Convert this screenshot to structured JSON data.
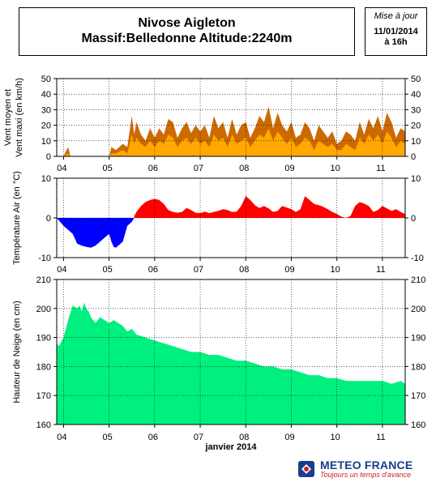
{
  "header": {
    "title_line1": "Nivose Aigleton",
    "title_line2": "Massif:Belledonne Altitude:2240m",
    "update_label": "Mise à jour",
    "update_date": "11/01/2014",
    "update_hour": "à 16h"
  },
  "logo": {
    "name": "METEO FRANCE",
    "tagline": "Toujours un temps d'avance",
    "color_blue": "#1c3c8c",
    "color_red": "#d0202a"
  },
  "chart_data": [
    {
      "type": "area",
      "ylabel": "Vent moyen et Vent maxi (en km/h)",
      "ylim": [
        0,
        50
      ],
      "yticks": [
        0,
        10,
        20,
        30,
        40,
        50
      ],
      "xlabel": "",
      "x_tick_labels": [
        "04",
        "05",
        "06",
        "07",
        "08",
        "09",
        "10",
        "11"
      ],
      "grid": true,
      "series": [
        {
          "color": "#cc6a00",
          "x": [
            3.85,
            4.0,
            4.1,
            4.15,
            4.2,
            4.3,
            4.6,
            5.0,
            5.05,
            5.15,
            5.3,
            5.4,
            5.5,
            5.55,
            5.6,
            5.7,
            5.8,
            5.9,
            6.0,
            6.1,
            6.2,
            6.3,
            6.4,
            6.5,
            6.6,
            6.7,
            6.8,
            6.9,
            7.0,
            7.1,
            7.2,
            7.3,
            7.4,
            7.5,
            7.6,
            7.7,
            7.8,
            7.9,
            8.0,
            8.1,
            8.2,
            8.3,
            8.4,
            8.5,
            8.6,
            8.7,
            8.8,
            8.9,
            9.0,
            9.1,
            9.2,
            9.3,
            9.4,
            9.5,
            9.6,
            9.7,
            9.8,
            9.9,
            10.0,
            10.1,
            10.2,
            10.3,
            10.4,
            10.5,
            10.6,
            10.7,
            10.8,
            10.9,
            11.0,
            11.1,
            11.2,
            11.3,
            11.4,
            11.5
          ],
          "y": [
            0,
            0,
            6,
            0,
            0,
            0,
            0,
            0,
            6,
            4,
            8,
            6,
            26,
            14,
            22,
            14,
            10,
            18,
            12,
            18,
            14,
            24,
            22,
            12,
            18,
            22,
            15,
            20,
            16,
            20,
            12,
            26,
            18,
            22,
            12,
            24,
            14,
            20,
            22,
            12,
            18,
            26,
            22,
            32,
            18,
            28,
            20,
            16,
            22,
            12,
            14,
            22,
            18,
            10,
            20,
            16,
            12,
            16,
            8,
            10,
            16,
            14,
            10,
            22,
            14,
            24,
            18,
            26,
            16,
            28,
            22,
            12,
            18,
            16
          ]
        },
        {
          "color": "#ffa800",
          "x": [
            3.85,
            4.0,
            4.1,
            4.15,
            4.2,
            4.3,
            4.6,
            5.0,
            5.05,
            5.15,
            5.3,
            5.4,
            5.5,
            5.55,
            5.6,
            5.7,
            5.8,
            5.9,
            6.0,
            6.1,
            6.2,
            6.3,
            6.4,
            6.5,
            6.6,
            6.7,
            6.8,
            6.9,
            7.0,
            7.1,
            7.2,
            7.3,
            7.4,
            7.5,
            7.6,
            7.7,
            7.8,
            7.9,
            8.0,
            8.1,
            8.2,
            8.3,
            8.4,
            8.5,
            8.6,
            8.7,
            8.8,
            8.9,
            9.0,
            9.1,
            9.2,
            9.3,
            9.4,
            9.5,
            9.6,
            9.7,
            9.8,
            9.9,
            10.0,
            10.1,
            10.2,
            10.3,
            10.4,
            10.5,
            10.6,
            10.7,
            10.8,
            10.9,
            11.0,
            11.1,
            11.2,
            11.3,
            11.4,
            11.5
          ],
          "y": [
            0,
            0,
            2,
            0,
            0,
            0,
            0,
            0,
            2,
            2,
            4,
            2,
            14,
            8,
            12,
            8,
            6,
            10,
            6,
            10,
            8,
            14,
            12,
            6,
            10,
            12,
            8,
            12,
            8,
            10,
            6,
            14,
            10,
            12,
            6,
            14,
            8,
            10,
            12,
            6,
            10,
            14,
            12,
            18,
            10,
            16,
            12,
            8,
            12,
            6,
            8,
            12,
            10,
            4,
            10,
            8,
            6,
            8,
            4,
            4,
            8,
            6,
            4,
            12,
            8,
            14,
            10,
            14,
            8,
            16,
            12,
            6,
            10,
            8
          ]
        }
      ]
    },
    {
      "type": "area",
      "ylabel": "Température Air (en °C)",
      "ylim": [
        -10,
        10
      ],
      "yticks": [
        -10,
        0,
        10
      ],
      "x_tick_labels": [
        "04",
        "05",
        "06",
        "07",
        "08",
        "09",
        "10",
        "11"
      ],
      "grid": true,
      "series": [
        {
          "color": "#0000ff",
          "x": [
            3.85,
            4.0,
            4.1,
            4.2,
            4.3,
            4.4,
            4.5,
            4.6,
            4.7,
            4.8,
            4.9,
            5.0,
            5.05,
            5.1,
            5.15,
            5.2,
            5.3,
            5.4,
            5.5,
            5.55
          ],
          "y": [
            0,
            -2,
            -3,
            -4,
            -6.5,
            -7,
            -7.3,
            -7.5,
            -7,
            -6,
            -5,
            -4,
            -6,
            -7.3,
            -7.5,
            -7,
            -6,
            -2,
            -1,
            0
          ]
        },
        {
          "color": "#ff0000",
          "x": [
            5.55,
            5.6,
            5.7,
            5.8,
            5.9,
            6.0,
            6.1,
            6.2,
            6.3,
            6.4,
            6.5,
            6.6,
            6.7,
            6.8,
            6.9,
            7.0,
            7.1,
            7.2,
            7.3,
            7.4,
            7.5,
            7.6,
            7.7,
            7.8,
            7.9,
            8.0,
            8.1,
            8.2,
            8.3,
            8.4,
            8.5,
            8.6,
            8.7,
            8.8,
            8.9,
            9.0,
            9.1,
            9.2,
            9.3,
            9.4,
            9.5,
            9.6,
            9.7,
            9.8,
            9.9,
            10.0,
            10.1,
            10.2,
            10.3,
            10.4,
            10.5,
            10.6,
            10.7,
            10.8,
            10.9,
            11.0,
            11.1,
            11.2,
            11.3,
            11.4,
            11.5
          ],
          "y": [
            0.5,
            1.5,
            3,
            4,
            4.5,
            4.8,
            4.5,
            3.5,
            2,
            1.5,
            1.3,
            1.5,
            2.5,
            2,
            1.3,
            1.2,
            1.6,
            1.2,
            1.5,
            1.8,
            2.2,
            2,
            1.5,
            1.6,
            3,
            5.5,
            4.5,
            3.2,
            2.5,
            3,
            2.4,
            1.5,
            1.8,
            3,
            2.6,
            2.2,
            1.5,
            2.2,
            5.5,
            4.5,
            3.5,
            3.2,
            2.8,
            2.2,
            1.5,
            1,
            0.3,
            0,
            0.5,
            3,
            4,
            3.6,
            3,
            1.5,
            2,
            3,
            2.4,
            1.8,
            2.2,
            1.5,
            1
          ]
        }
      ]
    },
    {
      "type": "area",
      "ylabel": "Hauteur de Neige (en cm)",
      "xlabel": "janvier 2014",
      "ylim": [
        160,
        210
      ],
      "yticks": [
        160,
        170,
        180,
        190,
        200,
        210
      ],
      "x_tick_labels": [
        "04",
        "05",
        "06",
        "07",
        "08",
        "09",
        "10",
        "11"
      ],
      "grid": true,
      "series": [
        {
          "color": "#00f080",
          "x": [
            3.85,
            3.9,
            4.0,
            4.1,
            4.2,
            4.3,
            4.35,
            4.4,
            4.45,
            4.5,
            4.55,
            4.6,
            4.7,
            4.8,
            4.9,
            5.0,
            5.1,
            5.2,
            5.3,
            5.4,
            5.5,
            5.6,
            5.8,
            6.0,
            6.2,
            6.4,
            6.6,
            6.8,
            7.0,
            7.2,
            7.4,
            7.6,
            7.8,
            8.0,
            8.2,
            8.4,
            8.6,
            8.8,
            9.0,
            9.2,
            9.4,
            9.6,
            9.8,
            10.0,
            10.2,
            10.4,
            10.6,
            10.8,
            11.0,
            11.2,
            11.4,
            11.5
          ],
          "y": [
            188,
            187,
            190,
            196,
            201,
            200,
            201,
            199,
            202,
            200,
            199,
            197,
            195,
            197,
            196,
            195,
            196,
            195,
            194,
            192,
            193,
            191,
            190,
            189,
            188,
            187,
            186,
            185,
            185,
            184,
            184,
            183,
            182,
            182,
            181,
            180,
            180,
            179,
            179,
            178,
            177,
            177,
            176,
            176,
            175,
            175,
            175,
            175,
            175,
            174,
            175,
            174
          ]
        }
      ]
    }
  ]
}
